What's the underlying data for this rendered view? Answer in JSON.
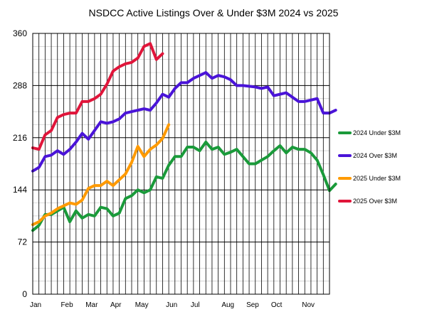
{
  "chart_data": {
    "type": "line",
    "title": "NSDCC Active Listings Over & Under $3M 2024 vs 2025",
    "xlabel": "",
    "ylabel": "",
    "ylim": [
      0,
      360
    ],
    "yticks": [
      0,
      72,
      144,
      216,
      288,
      360
    ],
    "x_range": [
      0,
      48
    ],
    "month_ticks": [
      {
        "label": "Jan",
        "x": 0
      },
      {
        "label": "Feb",
        "x": 5
      },
      {
        "label": "Mar",
        "x": 9
      },
      {
        "label": "Apr",
        "x": 13
      },
      {
        "label": "May",
        "x": 17
      },
      {
        "label": "Jun",
        "x": 22
      },
      {
        "label": "Jul",
        "x": 26
      },
      {
        "label": "Aug",
        "x": 31
      },
      {
        "label": "Sep",
        "x": 35
      },
      {
        "label": "Oct",
        "x": 39
      },
      {
        "label": "Nov",
        "x": 44
      }
    ],
    "grid": true,
    "legend_position": "right",
    "series": [
      {
        "name": "2024 Under $3M",
        "color": "#1a9a3a",
        "values": [
          88,
          95,
          110,
          110,
          115,
          120,
          100,
          115,
          105,
          110,
          108,
          120,
          118,
          108,
          112,
          132,
          136,
          144,
          140,
          144,
          162,
          160,
          178,
          190,
          190,
          203,
          203,
          198,
          210,
          200,
          203,
          193,
          196,
          200,
          190,
          180,
          180,
          185,
          190,
          198,
          205,
          195,
          203,
          200,
          200,
          195,
          185,
          165,
          143,
          152
        ]
      },
      {
        "name": "2024 Over $3M",
        "color": "#4a14d8",
        "values": [
          170,
          175,
          190,
          192,
          198,
          193,
          200,
          210,
          222,
          214,
          226,
          238,
          236,
          238,
          242,
          250,
          252,
          254,
          256,
          254,
          264,
          276,
          272,
          284,
          292,
          292,
          298,
          302,
          306,
          298,
          302,
          300,
          296,
          288,
          288,
          287,
          286,
          284,
          286,
          274,
          276,
          278,
          272,
          266,
          266,
          268,
          270,
          250,
          250,
          254
        ]
      },
      {
        "name": "2025 Under $3M",
        "color": "#ff9a00",
        "values": [
          96,
          100,
          108,
          112,
          118,
          122,
          126,
          124,
          130,
          146,
          150,
          150,
          156,
          150,
          158,
          166,
          182,
          204,
          190,
          200,
          206,
          215,
          234
        ]
      },
      {
        "name": "2025 Over $3M",
        "color": "#e0153a",
        "values": [
          202,
          200,
          220,
          226,
          244,
          248,
          250,
          250,
          266,
          266,
          270,
          276,
          290,
          308,
          314,
          318,
          320,
          326,
          342,
          346,
          324,
          332
        ]
      }
    ]
  }
}
